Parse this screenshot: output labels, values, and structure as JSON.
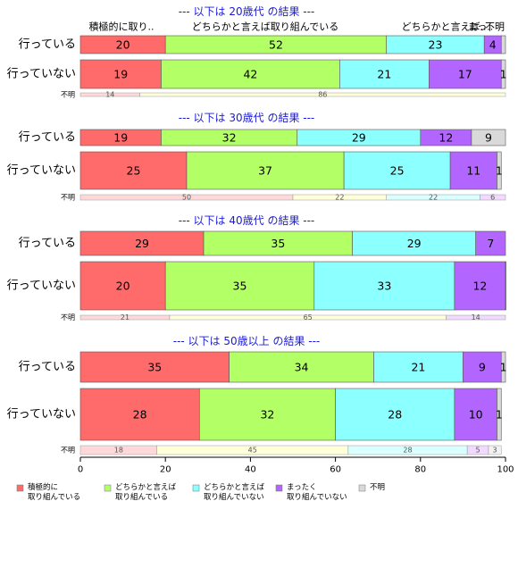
{
  "chart_data": {
    "type": "bar",
    "orientation": "horizontal",
    "stacked": true,
    "xlim": [
      0,
      100
    ],
    "x_ticks": [
      0,
      20,
      40,
      60,
      80,
      100
    ],
    "header_labels": [
      "積極的に取り..",
      "どちらかと言えば取り組んでいる",
      "どちらかと言えば..",
      "まっ..",
      "不明"
    ],
    "unknown_row_label": "不明",
    "legend": [
      {
        "lines": [
          "積極的に",
          "取り組んでいる"
        ],
        "color": "#ff6b6b"
      },
      {
        "lines": [
          "どちらかと言えば",
          "取り組んでいる"
        ],
        "color": "#b3ff66"
      },
      {
        "lines": [
          "どちらかと言えば",
          "取り組んでいない"
        ],
        "color": "#8cffff"
      },
      {
        "lines": [
          "まったく",
          "取り組んでいない"
        ],
        "color": "#b366ff"
      },
      {
        "lines": [
          "不明"
        ],
        "color": "#d9d9d9"
      }
    ],
    "unknown_colors": [
      "#ffd9d9",
      "#ffffd9",
      "#d9ffff",
      "#f2d9ff",
      "#f2f2f2"
    ],
    "groups": [
      {
        "title": "--- 以下は 20歳代 の結果 ---",
        "rows": [
          {
            "label": "行っている",
            "values": [
              20,
              52,
              23,
              4,
              1
            ],
            "value_labels": [
              "20",
              "52",
              "23",
              "4",
              ""
            ]
          },
          {
            "label": "行っていない",
            "values": [
              19,
              42,
              21,
              17,
              1
            ],
            "value_labels": [
              "19",
              "42",
              "21",
              "17",
              "1"
            ]
          }
        ],
        "unknown": {
          "values": [
            14,
            86,
            0,
            0,
            0
          ],
          "value_labels": [
            "14",
            "86",
            "",
            "",
            ""
          ]
        }
      },
      {
        "title": "--- 以下は 30歳代 の結果 ---",
        "rows": [
          {
            "label": "行っている",
            "values": [
              19,
              32,
              29,
              12,
              9
            ],
            "value_labels": [
              "19",
              "32",
              "29",
              "12",
              "9"
            ]
          },
          {
            "label": "行っていない",
            "values": [
              25,
              37,
              25,
              11,
              1
            ],
            "value_labels": [
              "25",
              "37",
              "25",
              "11",
              "1"
            ]
          }
        ],
        "unknown": {
          "values": [
            50,
            22,
            22,
            6,
            0
          ],
          "value_labels": [
            "50",
            "22",
            "22",
            "6",
            ""
          ]
        }
      },
      {
        "title": "--- 以下は 40歳代 の結果 ---",
        "rows": [
          {
            "label": "行っている",
            "values": [
              29,
              35,
              29,
              7,
              0
            ],
            "value_labels": [
              "29",
              "35",
              "29",
              "7",
              ""
            ]
          },
          {
            "label": "行っていない",
            "values": [
              20,
              35,
              33,
              12,
              0.5
            ],
            "value_labels": [
              "20",
              "35",
              "33",
              "12",
              ""
            ]
          }
        ],
        "unknown": {
          "values": [
            21,
            65,
            0,
            14,
            0
          ],
          "value_labels": [
            "21",
            "65",
            "",
            "14",
            ""
          ]
        }
      },
      {
        "title": "--- 以下は 50歳以上 の結果 ---",
        "rows": [
          {
            "label": "行っている",
            "values": [
              35,
              34,
              21,
              9,
              1
            ],
            "value_labels": [
              "35",
              "34",
              "21",
              "9",
              "1"
            ]
          },
          {
            "label": "行っていない",
            "values": [
              28,
              32,
              28,
              10,
              1
            ],
            "value_labels": [
              "28",
              "32",
              "28",
              "10",
              "1"
            ]
          }
        ],
        "unknown": {
          "values": [
            18,
            45,
            28,
            5,
            3
          ],
          "value_labels": [
            "18",
            "45",
            "28",
            "5",
            "3"
          ]
        }
      }
    ]
  }
}
